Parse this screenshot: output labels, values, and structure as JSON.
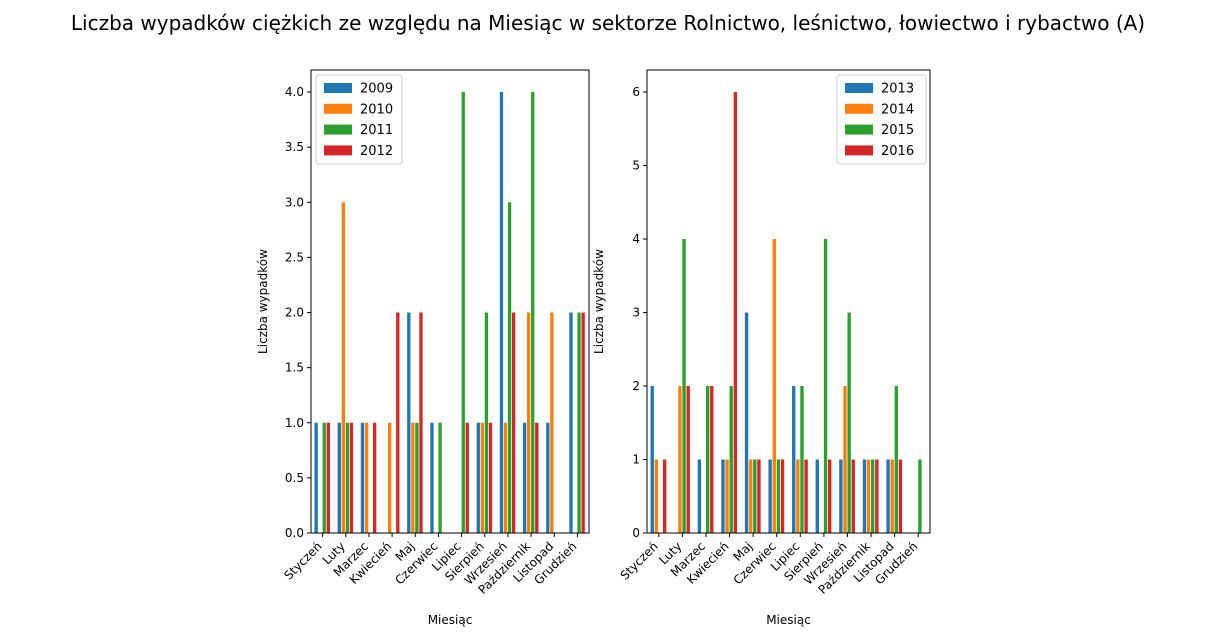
{
  "chart_data": [
    {
      "type": "bar",
      "title": "Liczba wypadków ciężkich ze względu na Miesiąc w sektorze Rolnictwo, leśnictwo, łowiectwo i rybactwo (A)",
      "xlabel": "Miesiąc",
      "ylabel": "Liczba wypadków",
      "ylim": [
        0,
        4.2
      ],
      "yticks": [
        "0.0",
        "0.5",
        "1.0",
        "1.5",
        "2.0",
        "2.5",
        "3.0",
        "3.5",
        "4.0"
      ],
      "legend_position": "top-left",
      "categories": [
        "Styczeń",
        "Luty",
        "Marzec",
        "Kwiecień",
        "Maj",
        "Czerwiec",
        "Lipiec",
        "Sierpień",
        "Wrzesień",
        "Październik",
        "Listopad",
        "Grudzień"
      ],
      "series": [
        {
          "name": "2009",
          "color": "#1f77b4",
          "values": [
            1,
            1,
            1,
            0,
            2,
            1,
            0,
            1,
            4,
            1,
            1,
            2
          ]
        },
        {
          "name": "2010",
          "color": "#ff7f0e",
          "values": [
            0,
            3,
            1,
            1,
            1,
            0,
            0,
            1,
            1,
            2,
            2,
            0
          ]
        },
        {
          "name": "2011",
          "color": "#2ca02c",
          "values": [
            1,
            1,
            0,
            0,
            1,
            1,
            4,
            2,
            3,
            4,
            0,
            2
          ]
        },
        {
          "name": "2012",
          "color": "#d62728",
          "values": [
            1,
            1,
            1,
            2,
            2,
            0,
            1,
            1,
            2,
            1,
            0,
            2
          ]
        }
      ]
    },
    {
      "type": "bar",
      "xlabel": "Miesiąc",
      "ylabel": "Liczba wypadków",
      "ylim": [
        0,
        6.3
      ],
      "yticks": [
        "0",
        "1",
        "2",
        "3",
        "4",
        "5",
        "6"
      ],
      "legend_position": "top-right",
      "categories": [
        "Styczeń",
        "Luty",
        "Marzec",
        "Kwiecień",
        "Maj",
        "Czerwiec",
        "Lipiec",
        "Sierpień",
        "Wrzesień",
        "Październik",
        "Listopad",
        "Grudzień"
      ],
      "series": [
        {
          "name": "2013",
          "color": "#1f77b4",
          "values": [
            2,
            0,
            1,
            1,
            3,
            1,
            2,
            1,
            1,
            1,
            1,
            0
          ]
        },
        {
          "name": "2014",
          "color": "#ff7f0e",
          "values": [
            1,
            2,
            0,
            1,
            1,
            4,
            1,
            0,
            2,
            1,
            1,
            0
          ]
        },
        {
          "name": "2015",
          "color": "#2ca02c",
          "values": [
            0,
            4,
            2,
            2,
            1,
            1,
            2,
            4,
            3,
            1,
            2,
            1
          ]
        },
        {
          "name": "2016",
          "color": "#d62728",
          "values": [
            1,
            2,
            2,
            6,
            1,
            1,
            1,
            1,
            1,
            1,
            1,
            0
          ]
        }
      ]
    }
  ]
}
